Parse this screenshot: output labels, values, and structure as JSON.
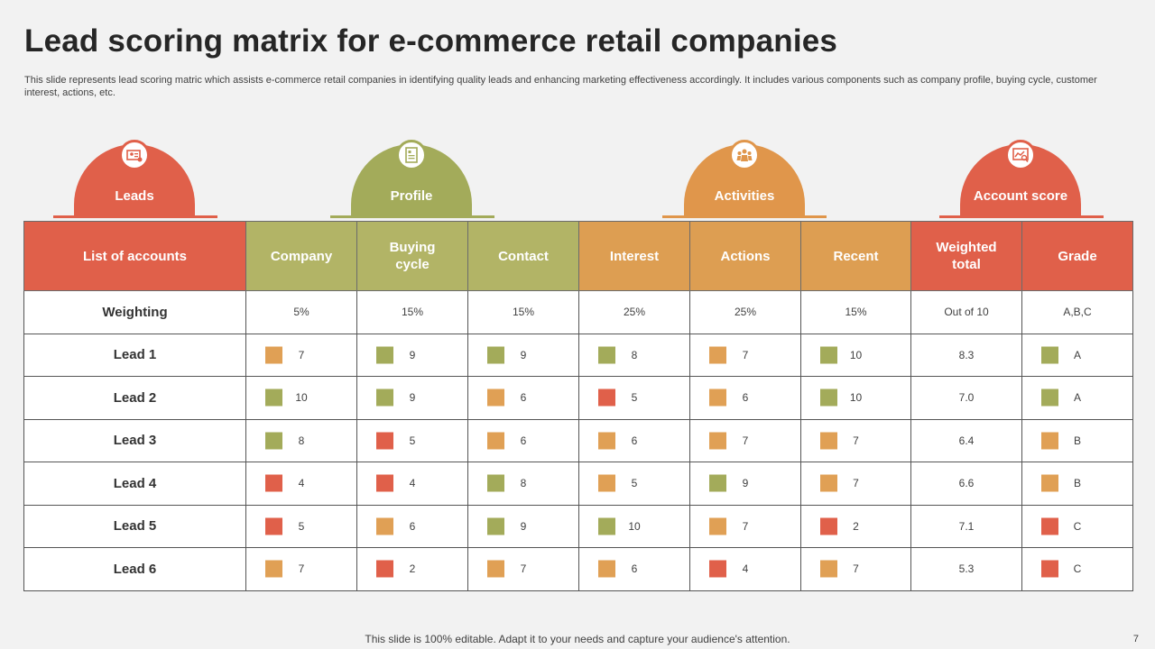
{
  "title": "Lead scoring matrix for e-commerce retail companies",
  "subtitle": "This slide represents lead scoring matric which assists e-commerce retail companies in identifying quality leads and enhancing marketing effectiveness accordingly. It includes various components such as company profile, buying cycle, customer interest, actions, etc.",
  "categories": [
    {
      "label": "Leads",
      "color": "#e0604a",
      "icon": "leads-icon"
    },
    {
      "label": "Profile",
      "color": "#a3ab5a",
      "icon": "profile-document-icon"
    },
    {
      "label": "Activities",
      "color": "#e0964b",
      "icon": "activities-people-icon"
    },
    {
      "label": "Account score",
      "color": "#e0604a",
      "icon": "account-score-icon"
    }
  ],
  "table": {
    "headers": [
      "List of accounts",
      "Company",
      "Buying cycle",
      "Contact",
      "Interest",
      "Actions",
      "Recent",
      "Weighted total",
      "Grade"
    ],
    "weighting": {
      "label": "Weighting",
      "values": [
        "5%",
        "15%",
        "15%",
        "25%",
        "25%",
        "15%",
        "Out of 10",
        "A,B,C"
      ]
    },
    "rows": [
      {
        "label": "Lead 1",
        "scores": [
          {
            "v": "7",
            "c": "orange"
          },
          {
            "v": "9",
            "c": "green"
          },
          {
            "v": "9",
            "c": "green"
          },
          {
            "v": "8",
            "c": "green"
          },
          {
            "v": "7",
            "c": "orange"
          },
          {
            "v": "10",
            "c": "green"
          }
        ],
        "total": "8.3",
        "grade": {
          "v": "A",
          "c": "green"
        }
      },
      {
        "label": "Lead 2",
        "scores": [
          {
            "v": "10",
            "c": "green"
          },
          {
            "v": "9",
            "c": "green"
          },
          {
            "v": "6",
            "c": "orange"
          },
          {
            "v": "5",
            "c": "red"
          },
          {
            "v": "6",
            "c": "orange"
          },
          {
            "v": "10",
            "c": "green"
          }
        ],
        "total": "7.0",
        "grade": {
          "v": "A",
          "c": "green"
        }
      },
      {
        "label": "Lead 3",
        "scores": [
          {
            "v": "8",
            "c": "green"
          },
          {
            "v": "5",
            "c": "red"
          },
          {
            "v": "6",
            "c": "orange"
          },
          {
            "v": "6",
            "c": "orange"
          },
          {
            "v": "7",
            "c": "orange"
          },
          {
            "v": "7",
            "c": "orange"
          }
        ],
        "total": "6.4",
        "grade": {
          "v": "B",
          "c": "orange"
        }
      },
      {
        "label": "Lead 4",
        "scores": [
          {
            "v": "4",
            "c": "red"
          },
          {
            "v": "4",
            "c": "red"
          },
          {
            "v": "8",
            "c": "green"
          },
          {
            "v": "5",
            "c": "orange"
          },
          {
            "v": "9",
            "c": "green"
          },
          {
            "v": "7",
            "c": "orange"
          }
        ],
        "total": "6.6",
        "grade": {
          "v": "B",
          "c": "orange"
        }
      },
      {
        "label": "Lead 5",
        "scores": [
          {
            "v": "5",
            "c": "red"
          },
          {
            "v": "6",
            "c": "orange"
          },
          {
            "v": "9",
            "c": "green"
          },
          {
            "v": "10",
            "c": "green"
          },
          {
            "v": "7",
            "c": "orange"
          },
          {
            "v": "2",
            "c": "red"
          }
        ],
        "total": "7.1",
        "grade": {
          "v": "C",
          "c": "red"
        }
      },
      {
        "label": "Lead 6",
        "scores": [
          {
            "v": "7",
            "c": "orange"
          },
          {
            "v": "2",
            "c": "red"
          },
          {
            "v": "7",
            "c": "orange"
          },
          {
            "v": "6",
            "c": "orange"
          },
          {
            "v": "4",
            "c": "red"
          },
          {
            "v": "7",
            "c": "orange"
          }
        ],
        "total": "5.3",
        "grade": {
          "v": "C",
          "c": "red"
        }
      }
    ]
  },
  "footer": "This slide is 100% editable. Adapt it to your needs and capture your audience's attention.",
  "page_number": "7",
  "colors": {
    "red": "#e0604a",
    "green": "#a3ab5a",
    "orange": "#e0964b",
    "background": "#f2f2f2"
  }
}
